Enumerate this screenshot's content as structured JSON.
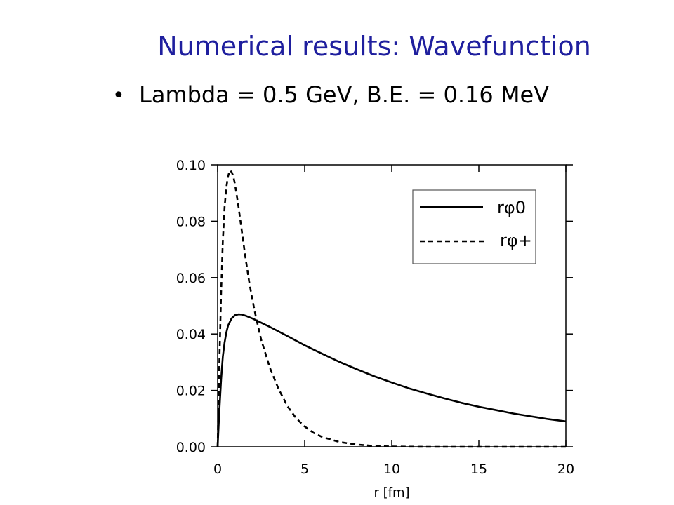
{
  "slide": {
    "title": "Numerical results: Wavefunction",
    "bullet": "Lambda = 0.5 GeV, B.E. = 0.16 MeV"
  },
  "chart_data": {
    "type": "line",
    "xlabel": "r [fm]",
    "ylabel": "",
    "xlim": [
      0,
      20
    ],
    "ylim": [
      0,
      0.1
    ],
    "xticks": [
      "0",
      "5",
      "10",
      "15",
      "20"
    ],
    "yticks": [
      "0.00",
      "0.02",
      "0.04",
      "0.06",
      "0.08",
      "0.10"
    ],
    "grid": false,
    "legend_position": "top-right",
    "series": [
      {
        "name": "rφ0",
        "style": "solid",
        "x": [
          0,
          0.1,
          0.2,
          0.3,
          0.4,
          0.5,
          0.6,
          0.8,
          1.0,
          1.2,
          1.4,
          1.6,
          1.8,
          2.0,
          2.5,
          3,
          4,
          5,
          6,
          7,
          8,
          9,
          10,
          11,
          12,
          13,
          14,
          15,
          16,
          17,
          18,
          19,
          20
        ],
        "y": [
          0,
          0.013,
          0.024,
          0.032,
          0.037,
          0.0405,
          0.043,
          0.0455,
          0.0467,
          0.047,
          0.0469,
          0.0465,
          0.046,
          0.0455,
          0.044,
          0.0425,
          0.0393,
          0.036,
          0.033,
          0.0301,
          0.0275,
          0.025,
          0.0228,
          0.0207,
          0.0189,
          0.0172,
          0.0156,
          0.0142,
          0.013,
          0.0118,
          0.0108,
          0.0098,
          0.009
        ]
      },
      {
        "name": "rφ+",
        "style": "dashed",
        "x": [
          0,
          0.1,
          0.2,
          0.3,
          0.4,
          0.5,
          0.6,
          0.7,
          0.8,
          0.9,
          1.0,
          1.2,
          1.4,
          1.6,
          1.8,
          2.0,
          2.2,
          2.5,
          3.0,
          3.5,
          4.0,
          4.5,
          5.0,
          5.5,
          6.0,
          7.0,
          8.0,
          9.0,
          10,
          12,
          15,
          20
        ],
        "y": [
          0,
          0.03,
          0.055,
          0.073,
          0.085,
          0.092,
          0.096,
          0.098,
          0.0975,
          0.096,
          0.093,
          0.085,
          0.076,
          0.067,
          0.059,
          0.052,
          0.046,
          0.038,
          0.028,
          0.0205,
          0.0145,
          0.0102,
          0.0072,
          0.005,
          0.0035,
          0.0017,
          0.0008,
          0.0003,
          0.0001,
          0,
          0,
          0
        ]
      }
    ]
  }
}
